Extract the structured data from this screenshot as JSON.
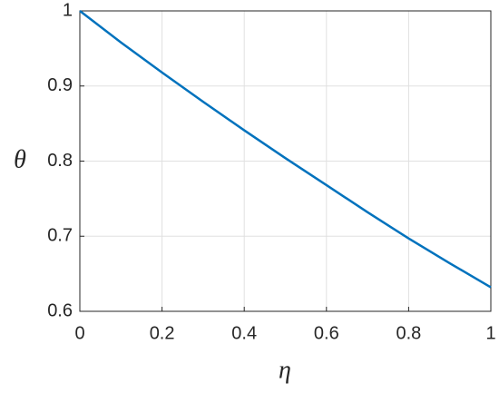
{
  "chart_data": {
    "type": "line",
    "x_label": "η",
    "y_label": "θ",
    "x": [
      0,
      0.1,
      0.2,
      0.3,
      0.4,
      0.5,
      0.6,
      0.7,
      0.8,
      0.9,
      1
    ],
    "series": [
      {
        "color": "#0072bd",
        "values": [
          1,
          0.958,
          0.918,
          0.879,
          0.841,
          0.804,
          0.768,
          0.732,
          0.697,
          0.664,
          0.632
        ]
      }
    ],
    "xlim": [
      0,
      1
    ],
    "xticks": [
      0,
      0.2,
      0.4,
      0.6,
      0.8,
      1
    ],
    "ylim": [
      0.6,
      1
    ],
    "yticks": [
      0.6,
      0.7,
      0.8,
      0.9,
      1
    ],
    "grid": true
  }
}
